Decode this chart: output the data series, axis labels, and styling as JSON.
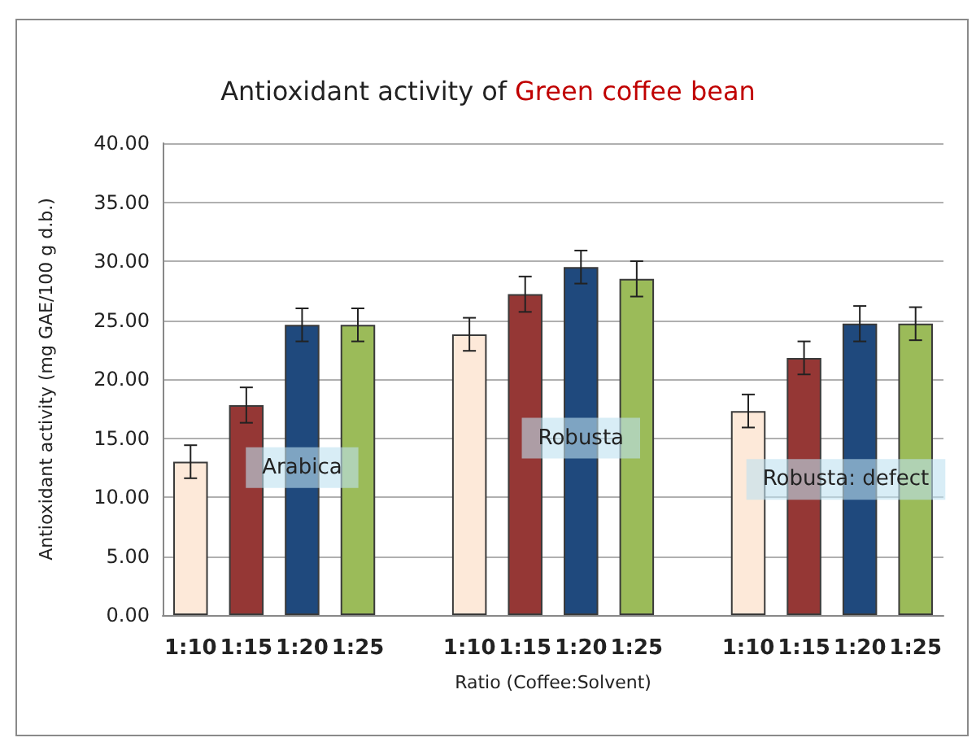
{
  "chart_data": {
    "type": "bar",
    "title": "Antioxidant activity of",
    "subtitle": "Green coffee bean",
    "xlabel": "Ratio (Coffee:Solvent)",
    "ylabel": "Antioxidant activity (mg GAE/100 g d.b.)",
    "categories": [
      "1:10",
      "1:15",
      "1:20",
      "1:25",
      null,
      "1:10",
      "1:15",
      "1:20",
      "1:25",
      null,
      "1:10",
      "1:15",
      "1:20",
      "1:25"
    ],
    "values": [
      13.0,
      17.8,
      24.6,
      24.6,
      null,
      23.8,
      27.2,
      29.5,
      28.5,
      null,
      17.3,
      21.8,
      24.7,
      24.7
    ],
    "errors": [
      1.4,
      1.5,
      1.4,
      1.4,
      null,
      1.4,
      1.5,
      1.4,
      1.5,
      null,
      1.4,
      1.4,
      1.5,
      1.4
    ],
    "colors": [
      "#fde9d9",
      "#953735",
      "#1f497d",
      "#9bbb59",
      "#ffffff",
      "#fde9d9",
      "#953735",
      "#1f497d",
      "#9bbb59",
      "#ffffff",
      "#fde9d9",
      "#953735",
      "#1f497d",
      "#9bbb59"
    ],
    "ylim": [
      0,
      40
    ],
    "yticks": [
      {
        "value": 0,
        "label": "0.00"
      },
      {
        "value": 5,
        "label": "5.00"
      },
      {
        "value": 10,
        "label": "10.00"
      },
      {
        "value": 15,
        "label": "15.00"
      },
      {
        "value": 20,
        "label": "20.00"
      },
      {
        "value": 25,
        "label": "25.00"
      },
      {
        "value": 30,
        "label": "30.00"
      },
      {
        "value": 35,
        "label": "35.00"
      },
      {
        "value": 40,
        "label": "40.00"
      }
    ],
    "grid": "y",
    "annotations": [
      "Arabica",
      "Robusta",
      "Robusta: defect"
    ]
  }
}
